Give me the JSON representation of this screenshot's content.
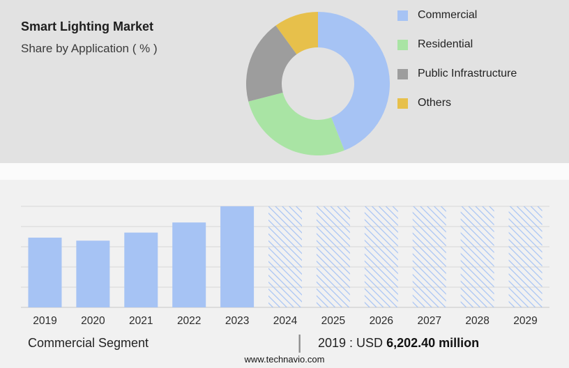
{
  "header": {
    "title": "Smart Lighting Market",
    "subtitle": "Share by Application ( % )"
  },
  "chart_data": [
    {
      "type": "pie",
      "donut": true,
      "title": "Smart Lighting Market - Share by Application ( % )",
      "legend_position": "right",
      "slices": [
        {
          "label": "Commercial",
          "value": 44,
          "color": "#a6c3f4"
        },
        {
          "label": "Residential",
          "value": 27,
          "color": "#a9e4a4"
        },
        {
          "label": "Public Infrastructure",
          "value": 19,
          "color": "#9d9d9d"
        },
        {
          "label": "Others",
          "value": 10,
          "color": "#e7c04b"
        }
      ]
    },
    {
      "type": "bar",
      "categories": [
        "2019",
        "2020",
        "2021",
        "2022",
        "2023",
        "2024",
        "2025",
        "2026",
        "2027",
        "2028",
        "2029"
      ],
      "values": [
        69,
        66,
        74,
        84,
        100,
        100,
        100,
        100,
        100,
        100,
        100
      ],
      "forecast_from_index": 5,
      "bar_color": "#a6c3f4",
      "hatch_color": "#a6c3f4",
      "ylim": [
        0,
        100
      ],
      "grid": true
    }
  ],
  "footer": {
    "segment": "Commercial Segment",
    "divider": "|",
    "value_prefix": "2019 : USD",
    "value_bold": "6,202.40 million",
    "website": "www.technavio.com"
  }
}
